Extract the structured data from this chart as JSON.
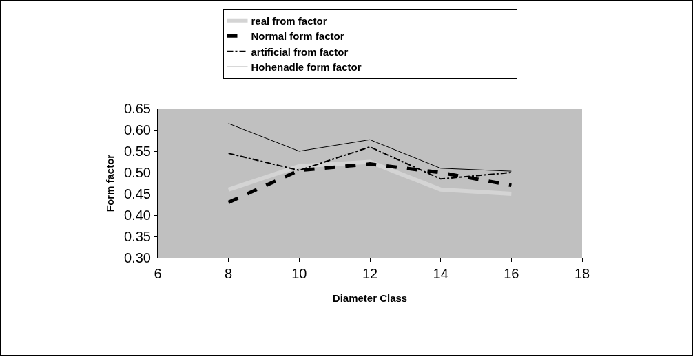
{
  "chart_data": {
    "type": "line",
    "xlabel": "Diameter Class",
    "ylabel": "Form factor",
    "x": [
      8,
      10,
      12,
      14,
      16
    ],
    "series": [
      {
        "name": "real from factor",
        "color": "#d4d4d4",
        "values": [
          0.46,
          0.515,
          0.525,
          0.46,
          0.45
        ],
        "line_style": "solid"
      },
      {
        "name": "Normal form factor",
        "color": "#000000",
        "values": [
          0.43,
          0.505,
          0.52,
          0.5,
          0.47
        ],
        "line_style": "dashed"
      },
      {
        "name": "artificial from factor",
        "color": "#000000",
        "values": [
          0.545,
          0.505,
          0.56,
          0.485,
          0.5
        ],
        "line_style": "dashdot"
      },
      {
        "name": "Hohenadle form factor",
        "color": "#000000",
        "values": [
          0.615,
          0.55,
          0.577,
          0.51,
          0.503
        ],
        "line_style": "solid"
      }
    ],
    "xlim": [
      6,
      18
    ],
    "xticks": [
      6,
      8,
      10,
      12,
      14,
      16,
      18
    ],
    "ylim": [
      0.3,
      0.65
    ],
    "yticks": [
      {
        "value": 0.3,
        "label": "0.30"
      },
      {
        "value": 0.35,
        "label": "0.35"
      },
      {
        "value": 0.4,
        "label": "0.40"
      },
      {
        "value": 0.45,
        "label": "0.45"
      },
      {
        "value": 0.5,
        "label": "0.50"
      },
      {
        "value": 0.55,
        "label": "0.55"
      },
      {
        "value": 0.6,
        "label": "0.60"
      },
      {
        "value": 0.65,
        "label": "0.65"
      }
    ],
    "grid": false,
    "legend": "top",
    "marker": "none"
  }
}
